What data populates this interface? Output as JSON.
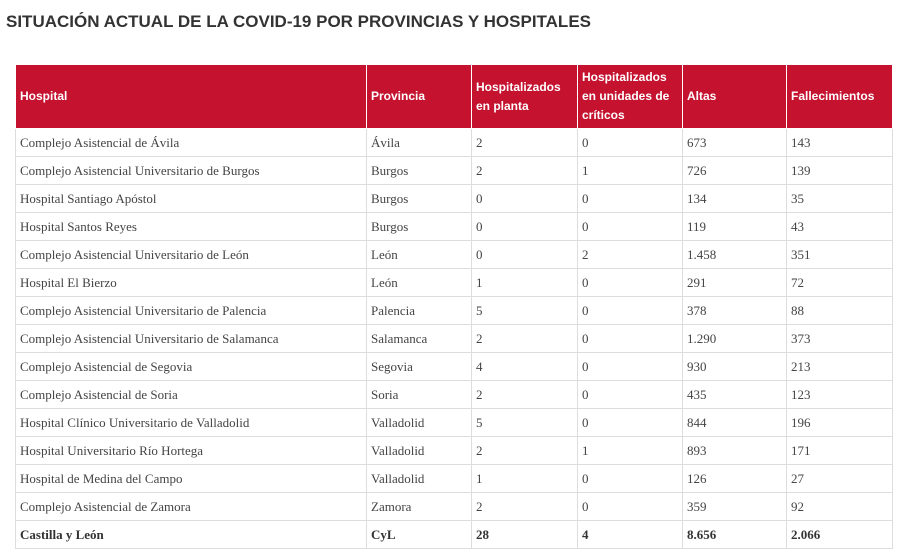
{
  "header": {
    "title": "SITUACIÓN ACTUAL DE LA COVID-19 POR PROVINCIAS Y HOSPITALES"
  },
  "table": {
    "columns": [
      "Hospital",
      "Provincia",
      "Hospitalizados en planta",
      "Hospitalizados en unidades de críticos",
      "Altas",
      "Fallecimientos"
    ],
    "rows": [
      [
        "Complejo Asistencial de Ávila",
        "Ávila",
        "2",
        "0",
        "673",
        "143"
      ],
      [
        "Complejo Asistencial Universitario de Burgos",
        "Burgos",
        "2",
        "1",
        "726",
        "139"
      ],
      [
        "Hospital Santiago Apóstol",
        "Burgos",
        "0",
        "0",
        "134",
        "35"
      ],
      [
        "Hospital Santos Reyes",
        "Burgos",
        "0",
        "0",
        "119",
        "43"
      ],
      [
        "Complejo Asistencial Universitario de León",
        "León",
        "0",
        "2",
        "1.458",
        "351"
      ],
      [
        "Hospital El Bierzo",
        "León",
        "1",
        "0",
        "291",
        "72"
      ],
      [
        "Complejo Asistencial Universitario de Palencia",
        "Palencia",
        "5",
        "0",
        "378",
        "88"
      ],
      [
        "Complejo Asistencial Universitario de Salamanca",
        "Salamanca",
        "2",
        "0",
        "1.290",
        "373"
      ],
      [
        "Complejo Asistencial de Segovia",
        "Segovia",
        "4",
        "0",
        "930",
        "213"
      ],
      [
        "Complejo Asistencial de Soria",
        "Soria",
        "2",
        "0",
        "435",
        "123"
      ],
      [
        "Hospital Clínico Universitario de Valladolid",
        "Valladolid",
        "5",
        "0",
        "844",
        "196"
      ],
      [
        "Hospital Universitario Río Hortega",
        "Valladolid",
        "2",
        "1",
        "893",
        "171"
      ],
      [
        "Hospital de Medina del Campo",
        "Valladolid",
        "1",
        "0",
        "126",
        "27"
      ],
      [
        "Complejo Asistencial de Zamora",
        "Zamora",
        "2",
        "0",
        "359",
        "92"
      ]
    ],
    "total": [
      "Castilla y León",
      "CyL",
      "28",
      "4",
      "8.656",
      "2.066"
    ]
  }
}
